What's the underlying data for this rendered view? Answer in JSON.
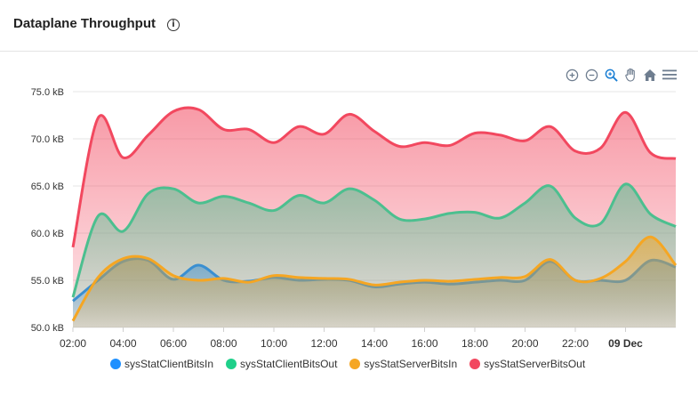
{
  "panel": {
    "title": "Dataplane Throughput"
  },
  "toolbar": {
    "icons": [
      "zoom-in-icon",
      "zoom-out-icon",
      "zoom-select-icon",
      "pan-hand-icon",
      "home-icon",
      "menu-icon"
    ]
  },
  "colors": {
    "client_in": "#3a8fd1",
    "client_out": "#4cbf8f",
    "server_in": "#f5a623",
    "server_out": "#f2485f"
  },
  "chart_data": {
    "type": "area",
    "title": "Dataplane Throughput",
    "ylim": [
      50,
      75
    ],
    "y_ticks": [
      "50.0 kB",
      "55.0 kB",
      "60.0 kB",
      "65.0 kB",
      "70.0 kB",
      "75.0 kB"
    ],
    "x_ticks": [
      "02:00",
      "04:00",
      "06:00",
      "08:00",
      "10:00",
      "12:00",
      "14:00",
      "16:00",
      "18:00",
      "20:00",
      "22:00",
      "09 Dec"
    ],
    "x_hours": [
      2,
      3,
      4,
      5,
      6,
      7,
      8,
      9,
      10,
      11,
      12,
      13,
      14,
      15,
      16,
      17,
      18,
      19,
      20,
      21,
      22,
      23,
      24,
      25,
      26
    ],
    "grid": true,
    "legend_position": "bottom",
    "series": [
      {
        "name": "sysStatClientBitsIn",
        "values": [
          52.8,
          55.0,
          57.0,
          57.1,
          55.1,
          56.6,
          55.0,
          54.9,
          55.3,
          55.0,
          55.1,
          55.0,
          54.3,
          54.6,
          54.8,
          54.6,
          54.8,
          55.0,
          55.0,
          57.0,
          55.0,
          55.0,
          55.0,
          57.1,
          56.4
        ]
      },
      {
        "name": "sysStatClientBitsOut",
        "values": [
          53.2,
          61.8,
          60.2,
          64.2,
          64.7,
          63.2,
          63.9,
          63.2,
          62.4,
          64.0,
          63.2,
          64.7,
          63.5,
          61.5,
          61.5,
          62.1,
          62.2,
          61.6,
          63.2,
          65.0,
          61.6,
          61.0,
          65.2,
          62.0,
          60.7
        ]
      },
      {
        "name": "sysStatServerBitsIn",
        "values": [
          50.7,
          55.3,
          57.3,
          57.3,
          55.5,
          55.0,
          55.2,
          54.8,
          55.5,
          55.3,
          55.2,
          55.1,
          54.5,
          54.8,
          55.0,
          54.9,
          55.1,
          55.3,
          55.4,
          57.2,
          55.0,
          55.2,
          57.0,
          59.6,
          56.6
        ]
      },
      {
        "name": "sysStatServerBitsOut",
        "values": [
          58.5,
          72.2,
          68.0,
          70.4,
          72.9,
          73.1,
          71.0,
          71.0,
          69.6,
          71.3,
          70.5,
          72.6,
          70.8,
          69.2,
          69.6,
          69.3,
          70.6,
          70.4,
          69.8,
          71.3,
          68.7,
          69.0,
          72.8,
          68.5,
          67.9
        ]
      }
    ]
  }
}
